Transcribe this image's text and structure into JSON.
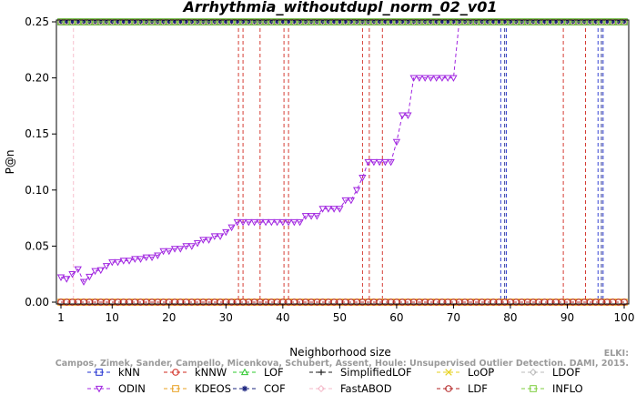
{
  "chart_data": {
    "type": "line",
    "title": "Arrhythmia_withoutdupl_norm_02_v01",
    "xlabel": "Neighborhood size",
    "ylabel": "P@n",
    "xlim": [
      1,
      100
    ],
    "ylim": [
      0,
      0.25
    ],
    "x_ticks": [
      "1",
      "10",
      "20",
      "30",
      "40",
      "50",
      "60",
      "70",
      "80",
      "90",
      "100"
    ],
    "y_ticks": [
      "0.00",
      "0.05",
      "0.10",
      "0.15",
      "0.20",
      "0.25"
    ],
    "grid": false,
    "legend_position": "bottom",
    "watermark": "ELKI: Campos, Zimek, Sander, Campello, Micenkova, Schubert, Assent, Houle: Unsupervised Outlier Detection. DAMI, 2015.",
    "series": [
      {
        "name": "kNN",
        "color": "#1f2fd0",
        "marker": "square",
        "values": [
          0.25
        ],
        "note": "constant"
      },
      {
        "name": "kNNW",
        "color": "#d0281e",
        "marker": "circle",
        "values": [
          0.25
        ],
        "note": "constant"
      },
      {
        "name": "LOF",
        "color": "#2ec82e",
        "marker": "triangle-up",
        "values": [
          0.25
        ],
        "note": "constant"
      },
      {
        "name": "SimplifiedLOF",
        "color": "#222222",
        "marker": "plus",
        "values": [
          0.25
        ],
        "note": "constant"
      },
      {
        "name": "LoOP",
        "color": "#e6d21e",
        "marker": "cross",
        "values": [
          0.25
        ],
        "note": "constant"
      },
      {
        "name": "LDOF",
        "color": "#bbbbbb",
        "marker": "diamond",
        "values": [
          0.25
        ],
        "note": "constant"
      },
      {
        "name": "ODIN",
        "color": "#a024e0",
        "marker": "triangle-down",
        "x": [
          1,
          2,
          3,
          4,
          5,
          6,
          7,
          8,
          9,
          10,
          11,
          12,
          13,
          14,
          15,
          16,
          17,
          18,
          19,
          20,
          21,
          22,
          23,
          24,
          25,
          26,
          27,
          28,
          29,
          30,
          31,
          32,
          33,
          34,
          35,
          36,
          37,
          38,
          39,
          40,
          41,
          42,
          43,
          44,
          45,
          46,
          47,
          48,
          49,
          50,
          51,
          52,
          53,
          54,
          55,
          56,
          57,
          58,
          59,
          60,
          61,
          62,
          63,
          64,
          65,
          66,
          67,
          68,
          69,
          70,
          71
        ],
        "values": [
          0.0222,
          0.0208,
          0.025,
          0.0294,
          0.0182,
          0.0227,
          0.0278,
          0.0286,
          0.0323,
          0.0357,
          0.0357,
          0.037,
          0.037,
          0.0385,
          0.0385,
          0.04,
          0.04,
          0.0417,
          0.0455,
          0.0455,
          0.0476,
          0.0476,
          0.05,
          0.05,
          0.0526,
          0.0556,
          0.0556,
          0.0588,
          0.0588,
          0.0625,
          0.0667,
          0.0714,
          0.0714,
          0.0714,
          0.0714,
          0.0714,
          0.0714,
          0.0714,
          0.0714,
          0.0714,
          0.0714,
          0.0714,
          0.0714,
          0.0769,
          0.0769,
          0.0769,
          0.0833,
          0.0833,
          0.0833,
          0.0833,
          0.0909,
          0.0909,
          0.1,
          0.1111,
          0.125,
          0.125,
          0.125,
          0.125,
          0.125,
          0.1429,
          0.1667,
          0.1667,
          0.2,
          0.2,
          0.2,
          0.2,
          0.2,
          0.2,
          0.2,
          0.2,
          0.25
        ]
      },
      {
        "name": "KDEOS",
        "color": "#e8a020",
        "marker": "square",
        "values": [
          0.0
        ],
        "note": "constant"
      },
      {
        "name": "COF",
        "color": "#1a237e",
        "marker": "asterisk",
        "values": [
          0.25
        ],
        "note": "constant"
      },
      {
        "name": "FastABOD",
        "color": "#f4b8c8",
        "marker": "diamond",
        "values": [
          0.25
        ],
        "note": "constant"
      },
      {
        "name": "LDF",
        "color": "#b22222",
        "marker": "circle",
        "values": [
          0.0
        ],
        "note": "constant"
      },
      {
        "name": "INFLO",
        "color": "#7ccd3c",
        "marker": "square",
        "values": [
          0.25
        ],
        "note": "constant"
      }
    ]
  }
}
